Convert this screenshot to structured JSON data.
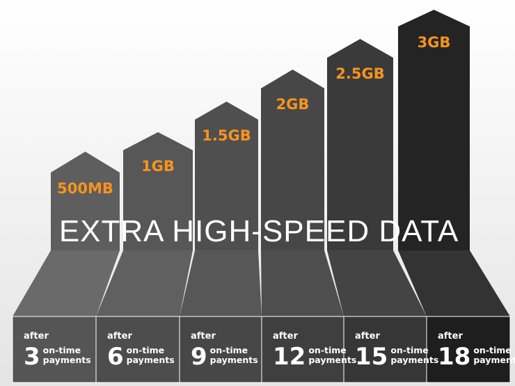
{
  "title": "EXTRA HIGH-SPEED DATA",
  "tiers": [
    {
      "amount": "500MB",
      "after": "after",
      "count": 3,
      "unit_line1": "on-time",
      "unit_line2": "payments"
    },
    {
      "amount": "1GB",
      "after": "after",
      "count": 6,
      "unit_line1": "on-time",
      "unit_line2": "payments"
    },
    {
      "amount": "1.5GB",
      "after": "after",
      "count": 9,
      "unit_line1": "on-time",
      "unit_line2": "payments"
    },
    {
      "amount": "2GB",
      "after": "after",
      "count": 12,
      "unit_line1": "on-time",
      "unit_line2": "payments"
    },
    {
      "amount": "2.5GB",
      "after": "after",
      "count": 15,
      "unit_line1": "on-time",
      "unit_line2": "payments"
    },
    {
      "amount": "3GB",
      "after": "after",
      "count": 18,
      "unit_line1": "on-time",
      "unit_line2": "payments"
    }
  ]
}
